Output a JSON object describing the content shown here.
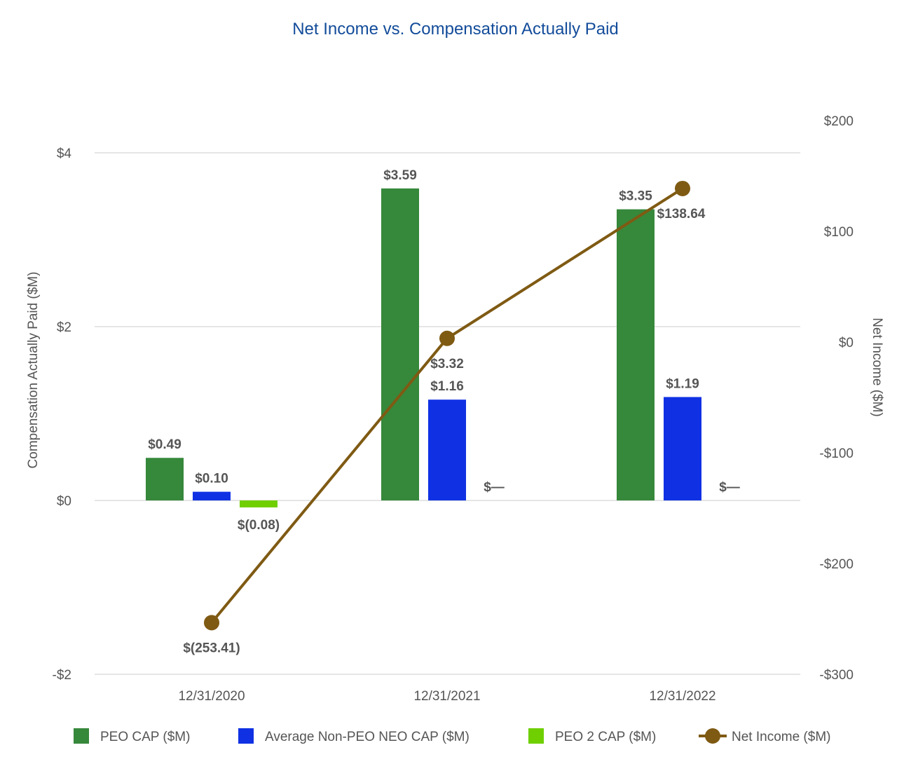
{
  "chart_data": {
    "type": "bar+line",
    "title": "Net Income vs. Compensation Actually Paid",
    "categories": [
      "12/31/2020",
      "12/31/2021",
      "12/31/2022"
    ],
    "y_left": {
      "label": "Compensation Actually Paid ($M)",
      "range": [
        -2,
        4
      ],
      "ticks": [
        {
          "value": 4,
          "label": "$4"
        },
        {
          "value": 2,
          "label": "$2"
        },
        {
          "value": 0,
          "label": "$0"
        },
        {
          "value": -2,
          "label": "-$2"
        }
      ]
    },
    "y_right": {
      "label": "Net Income ($M)",
      "range": [
        -300,
        200
      ],
      "ticks": [
        {
          "value": 200,
          "label": "$200"
        },
        {
          "value": 100,
          "label": "$100"
        },
        {
          "value": 0,
          "label": "$0"
        },
        {
          "value": -100,
          "label": "-$100"
        },
        {
          "value": -200,
          "label": "-$200"
        },
        {
          "value": -300,
          "label": "-$300"
        }
      ]
    },
    "bar_series": [
      {
        "name": "PEO CAP ($M)",
        "color": "#36883b",
        "values": [
          0.49,
          3.59,
          3.35
        ],
        "labels": [
          "$0.49",
          "$3.59",
          "$3.35"
        ]
      },
      {
        "name": "Average Non-PEO NEO CAP ($M)",
        "color": "#1031e3",
        "values": [
          0.1,
          1.16,
          1.19
        ],
        "labels": [
          "$0.10",
          "$1.16",
          "$1.19"
        ]
      },
      {
        "name": "PEO 2 CAP ($M)",
        "color": "#6fcf00",
        "values": [
          -0.08,
          0,
          0
        ],
        "labels": [
          "$(0.08)",
          "$—",
          "$—"
        ]
      }
    ],
    "line_series": {
      "name": "Net Income ($M)",
      "color": "#7f5a13",
      "axis": "right",
      "values": [
        -253.41,
        3.32,
        138.64
      ],
      "labels": [
        "$(253.41)",
        "$3.32",
        "$138.64"
      ]
    }
  },
  "colors": {
    "title": "#134c9a",
    "text": "#555555",
    "grid": "#e6e6e6"
  }
}
